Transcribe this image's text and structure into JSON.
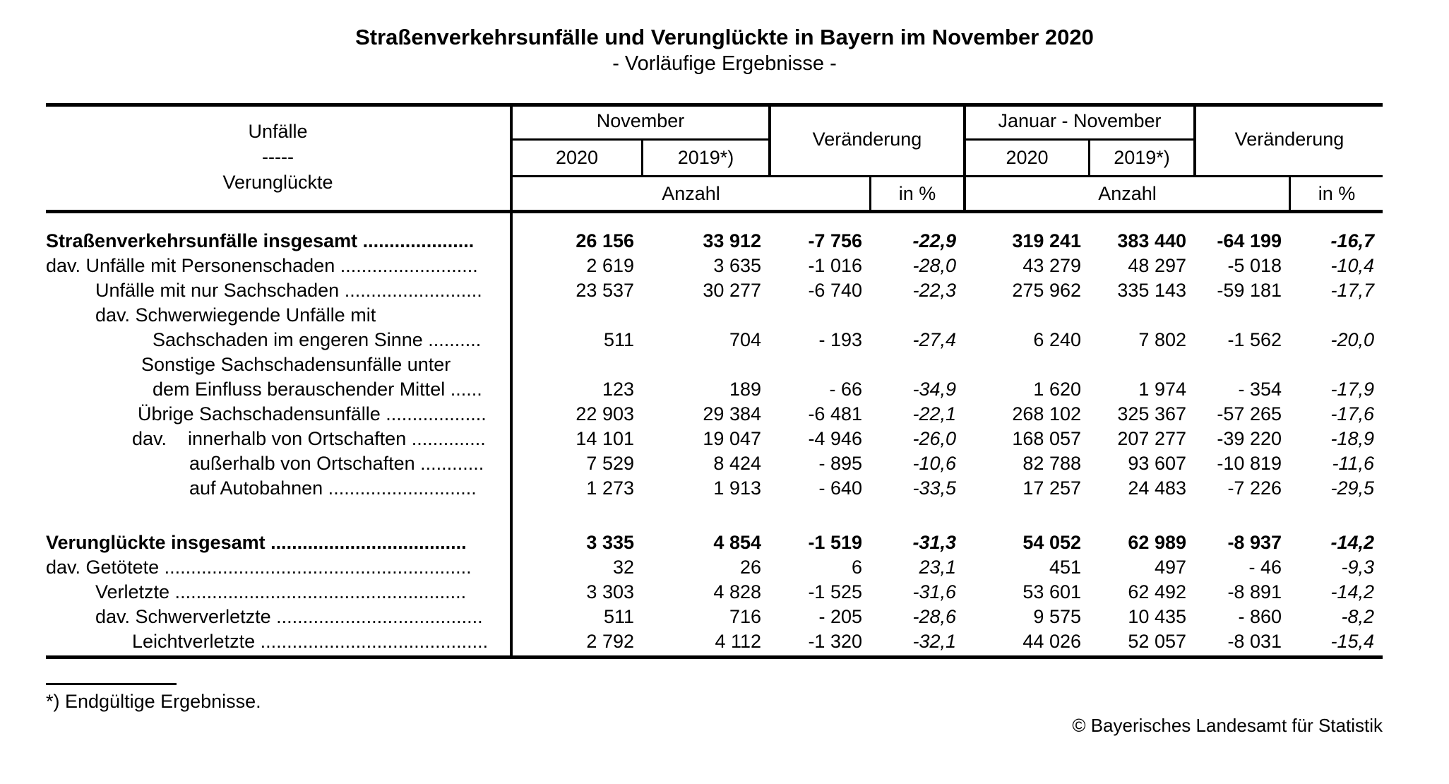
{
  "title": "Straßenverkehrsunfälle und Verunglückte in Bayern im November 2020",
  "subtitle": "- Vorläufige Ergebnisse -",
  "table": {
    "stub": [
      "Unfälle",
      "-----",
      "Verunglückte"
    ],
    "col_groups": [
      {
        "label": "November"
      },
      {
        "label": "Veränderung"
      },
      {
        "label": "Januar - November"
      },
      {
        "label": "Veränderung"
      }
    ],
    "years": [
      "2020",
      "2019*)"
    ],
    "units": {
      "anzahl": "Anzahl",
      "in_pct": "in %"
    },
    "sections": [
      {
        "rows": [
          {
            "label": "Straßenverkehrsunfälle insgesamt .....................",
            "indent": 0,
            "bold": true,
            "values": [
              "26 156",
              "33 912",
              "-7 756",
              "-22,9",
              "319 241",
              "383 440",
              "-64 199",
              "-16,7"
            ]
          },
          {
            "label": "dav. Unfälle mit Personenschaden ..........................",
            "indent": 0,
            "bold": false,
            "values": [
              "2 619",
              "3 635",
              "-1 016",
              "-28,0",
              "43 279",
              "48 297",
              "-5 018",
              "-10,4"
            ]
          },
          {
            "label": "Unfälle mit nur Sachschaden ..........................",
            "indent": 70,
            "bold": false,
            "values": [
              "23 537",
              "30 277",
              "-6 740",
              "-22,3",
              "275 962",
              "335 143",
              "-59 181",
              "-17,7"
            ]
          },
          {
            "label": "dav. Schwerwiegende Unfälle mit",
            "indent": 70,
            "bold": false,
            "values": null
          },
          {
            "label": "Sachschaden im engeren Sinne ..........",
            "indent": 151,
            "bold": false,
            "values": [
              "511",
              "704",
              "- 193",
              "-27,4",
              "6 240",
              "7 802",
              "-1 562",
              "-20,0"
            ]
          },
          {
            "label": "Sonstige Sachschadensunfälle unter",
            "indent": 135,
            "bold": false,
            "values": null
          },
          {
            "label": "dem Einfluss berauschender Mittel ......",
            "indent": 151,
            "bold": false,
            "values": [
              "123",
              "189",
              "- 66",
              "-34,9",
              "1 620",
              "1 974",
              "- 354",
              "-17,9"
            ]
          },
          {
            "label": "Übrige Sachschadensunfälle ...................",
            "indent": 130,
            "bold": false,
            "values": [
              "22 903",
              "29 384",
              "-6 481",
              "-22,1",
              "268 102",
              "325 367",
              "-57 265",
              "-17,6"
            ]
          },
          {
            "label": "dav.    innerhalb von Ortschaften ..............",
            "indent": 122,
            "bold": false,
            "values": [
              "14 101",
              "19 047",
              "-4 946",
              "-26,0",
              "168 057",
              "207 277",
              "-39 220",
              "-18,9"
            ]
          },
          {
            "label": "außerhalb von Ortschaften ............",
            "indent": 203,
            "bold": false,
            "values": [
              "7 529",
              "8 424",
              "- 895",
              "-10,6",
              "82 788",
              "93 607",
              "-10 819",
              "-11,6"
            ]
          },
          {
            "label": "auf Autobahnen ............................",
            "indent": 203,
            "bold": false,
            "values": [
              "1 273",
              "1 913",
              "- 640",
              "-33,5",
              "17 257",
              "24 483",
              "-7 226",
              "-29,5"
            ]
          }
        ]
      },
      {
        "rows": [
          {
            "label": "Verunglückte insgesamt .....................................",
            "indent": 0,
            "bold": true,
            "values": [
              "3 335",
              "4 854",
              "-1 519",
              "-31,3",
              "54 052",
              "62 989",
              "-8 937",
              "-14,2"
            ]
          },
          {
            "label": "dav. Getötete ..........................................................",
            "indent": 0,
            "bold": false,
            "values": [
              "32",
              "26",
              "6",
              "23,1",
              "451",
              "497",
              "- 46",
              "-9,3"
            ]
          },
          {
            "label": "Verletzte .......................................................",
            "indent": 70,
            "bold": false,
            "values": [
              "3 303",
              "4 828",
              "-1 525",
              "-31,6",
              "53 601",
              "62 492",
              "-8 891",
              "-14,2"
            ]
          },
          {
            "label": "dav. Schwerverletzte .......................................",
            "indent": 70,
            "bold": false,
            "values": [
              "511",
              "716",
              "- 205",
              "-28,6",
              "9 575",
              "10 435",
              "- 860",
              "-8,2"
            ]
          },
          {
            "label": "Leichtverletzte ...........................................",
            "indent": 122,
            "bold": false,
            "values": [
              "2 792",
              "4 112",
              "-1 320",
              "-32,1",
              "44 026",
              "52 057",
              "-8 031",
              "-15,4"
            ]
          }
        ]
      }
    ]
  },
  "footnote": "*) Endgültige Ergebnisse.",
  "copyright": "© Bayerisches Landesamt für Statistik"
}
